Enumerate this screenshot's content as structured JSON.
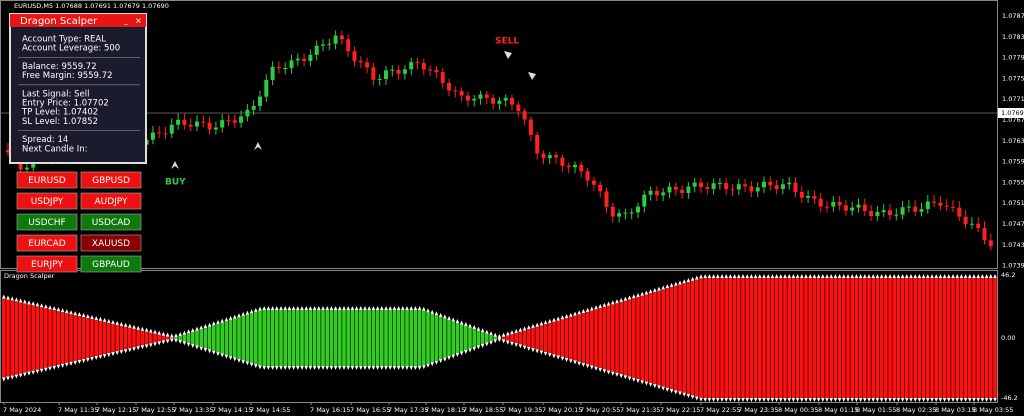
{
  "header": "EURUSD,M5  1.07688 1.07691 1.07679 1.07690",
  "price_axis": [
    "1.07875",
    "1.07835",
    "1.07795",
    "1.07755",
    "1.07715",
    "1.07675",
    "1.07635",
    "1.07595",
    "1.07555",
    "1.07515",
    "1.07475",
    "1.07435",
    "1.07395"
  ],
  "current_price": "1.07690",
  "indicator": {
    "name": "Dragon Scalper",
    "axis": [
      "46.2",
      "0.00",
      "-46.2"
    ]
  },
  "time_axis": [
    "7 May 2024",
    "7 May 11:35",
    "7 May 12:15",
    "7 May 12:55",
    "7 May 13:35",
    "7 May 14:15",
    "7 May 14:55",
    "7 May 16:15",
    "7 May 16:55",
    "7 May 17:35",
    "7 May 18:15",
    "7 May 18:55",
    "7 May 19:35",
    "7 May 20:15",
    "7 May 20:55",
    "7 May 21:35",
    "7 May 22:15",
    "7 May 22:55",
    "7 May 23:35",
    "8 May 00:35",
    "8 May 01:15",
    "8 May 01:55",
    "8 May 02:35",
    "8 May 03:15",
    "8 May 03:55"
  ],
  "panel": {
    "title": "Dragon Scalper",
    "groups": [
      [
        "Account Type: REAL",
        "Account Leverage: 500"
      ],
      [
        "Balance: 9559.72",
        "Free Margin: 9559.72"
      ],
      [
        "Last Signal: Sell",
        "Entry Price: 1.07702",
        "TP Level: 1.07402",
        "SL Level: 1.07852"
      ],
      [
        "Spread: 14",
        "Next Candle In:"
      ]
    ]
  },
  "buttons": [
    {
      "label": "EURUSD",
      "color": "#ee1111"
    },
    {
      "label": "GBPUSD",
      "color": "#ee1111"
    },
    {
      "label": "USDJPY",
      "color": "#ee1111"
    },
    {
      "label": "AUDJPY",
      "color": "#ee1111"
    },
    {
      "label": "USDCHF",
      "color": "#0e7a0e"
    },
    {
      "label": "USDCAD",
      "color": "#0e7a0e"
    },
    {
      "label": "EURCAD",
      "color": "#ee1111"
    },
    {
      "label": "XAUUSD",
      "color": "#8b0000"
    },
    {
      "label": "EURJPY",
      "color": "#ee1111"
    },
    {
      "label": "GBPAUD",
      "color": "#0e7a0e"
    }
  ],
  "signals": {
    "sell": "SELL",
    "buy": "BUY"
  }
}
